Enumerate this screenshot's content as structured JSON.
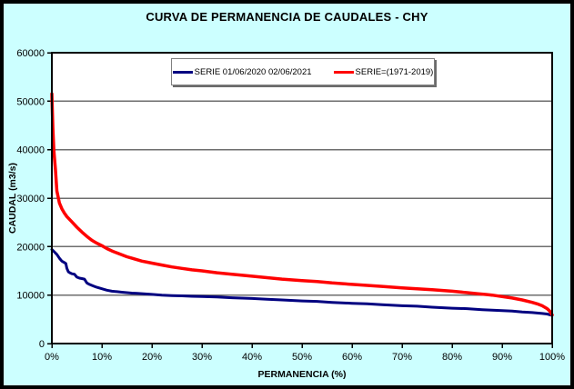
{
  "window": {
    "title": "CURVA DE PERMANENCIA DE CAUDALES - CHY"
  },
  "colors": {
    "window_background": "#CCFFFF",
    "window_border": "#000000",
    "plot_background": "#FFFFFF",
    "plot_frame": "#000000",
    "gridline": "#6E6E6E",
    "tick": "#000000",
    "series_blue": "#000080",
    "series_red": "#FF0000",
    "legend_background": "#FFFFFF",
    "legend_border": "#808080"
  },
  "legend": {
    "items": [
      {
        "label": "SERIE 01/06/2020 02/06/2021",
        "color": "#000080"
      },
      {
        "label": "SERIE=(1971-2019)",
        "color": "#FF0000"
      }
    ]
  },
  "axes": {
    "x_title": "PERMANENCIA (%)",
    "y_title": "CAUDAL (m3/s)"
  },
  "chart_data": {
    "type": "line",
    "title": "CURVA DE PERMANENCIA DE CAUDALES - CHY",
    "xlabel": "PERMANENCIA (%)",
    "ylabel": "CAUDAL (m3/s)",
    "xlim": [
      0,
      100
    ],
    "ylim": [
      0,
      60000
    ],
    "x_ticks": [
      "0%",
      "10%",
      "20%",
      "30%",
      "40%",
      "50%",
      "60%",
      "70%",
      "80%",
      "90%",
      "100%"
    ],
    "y_ticks": [
      0,
      10000,
      20000,
      30000,
      40000,
      50000,
      60000
    ],
    "grid": "horizontal-only",
    "legend_position": "inside-top-center",
    "series": [
      {
        "name": "SERIE 01/06/2020 02/06/2021",
        "color": "#000080",
        "width": 3,
        "points": [
          [
            0,
            19400
          ],
          [
            0.5,
            18900
          ],
          [
            1,
            18400
          ],
          [
            1.5,
            17600
          ],
          [
            2,
            17000
          ],
          [
            2.5,
            16700
          ],
          [
            2.8,
            16500
          ],
          [
            3,
            15500
          ],
          [
            3.3,
            14800
          ],
          [
            3.6,
            14600
          ],
          [
            4,
            14400
          ],
          [
            4.5,
            14300
          ],
          [
            5,
            13700
          ],
          [
            5.5,
            13500
          ],
          [
            6,
            13400
          ],
          [
            6.5,
            13300
          ],
          [
            7,
            12500
          ],
          [
            7.5,
            12200
          ],
          [
            8,
            12000
          ],
          [
            8.5,
            11800
          ],
          [
            9,
            11600
          ],
          [
            10,
            11300
          ],
          [
            11,
            11000
          ],
          [
            12,
            10800
          ],
          [
            13,
            10700
          ],
          [
            14,
            10600
          ],
          [
            15,
            10500
          ],
          [
            16,
            10400
          ],
          [
            17,
            10350
          ],
          [
            18,
            10300
          ],
          [
            20,
            10150
          ],
          [
            22,
            10000
          ],
          [
            24,
            9900
          ],
          [
            26,
            9850
          ],
          [
            28,
            9750
          ],
          [
            30,
            9700
          ],
          [
            33,
            9600
          ],
          [
            36,
            9450
          ],
          [
            40,
            9300
          ],
          [
            43,
            9150
          ],
          [
            46,
            9000
          ],
          [
            50,
            8800
          ],
          [
            53,
            8700
          ],
          [
            56,
            8500
          ],
          [
            60,
            8300
          ],
          [
            63,
            8200
          ],
          [
            66,
            8000
          ],
          [
            70,
            7800
          ],
          [
            73,
            7700
          ],
          [
            76,
            7500
          ],
          [
            80,
            7300
          ],
          [
            83,
            7200
          ],
          [
            86,
            7000
          ],
          [
            90,
            6800
          ],
          [
            92,
            6700
          ],
          [
            94,
            6500
          ],
          [
            96,
            6400
          ],
          [
            98,
            6200
          ],
          [
            99,
            6100
          ],
          [
            100,
            5800
          ]
        ]
      },
      {
        "name": "SERIE=(1971-2019)",
        "color": "#FF0000",
        "width": 3.5,
        "points": [
          [
            0,
            51500
          ],
          [
            0.2,
            44500
          ],
          [
            0.4,
            39800
          ],
          [
            0.7,
            36000
          ],
          [
            1,
            31500
          ],
          [
            1.5,
            29000
          ],
          [
            2,
            27800
          ],
          [
            2.5,
            26900
          ],
          [
            3,
            26200
          ],
          [
            4,
            25100
          ],
          [
            5,
            24000
          ],
          [
            6,
            23000
          ],
          [
            7,
            22100
          ],
          [
            8,
            21300
          ],
          [
            9,
            20700
          ],
          [
            10,
            20200
          ],
          [
            11,
            19600
          ],
          [
            12,
            19100
          ],
          [
            13,
            18700
          ],
          [
            14,
            18300
          ],
          [
            15,
            17900
          ],
          [
            16,
            17600
          ],
          [
            17,
            17300
          ],
          [
            18,
            17000
          ],
          [
            19,
            16800
          ],
          [
            20,
            16600
          ],
          [
            22,
            16200
          ],
          [
            24,
            15800
          ],
          [
            26,
            15500
          ],
          [
            28,
            15200
          ],
          [
            30,
            15000
          ],
          [
            33,
            14600
          ],
          [
            36,
            14300
          ],
          [
            40,
            13900
          ],
          [
            43,
            13600
          ],
          [
            46,
            13300
          ],
          [
            50,
            13000
          ],
          [
            53,
            12800
          ],
          [
            56,
            12500
          ],
          [
            60,
            12200
          ],
          [
            63,
            12000
          ],
          [
            66,
            11800
          ],
          [
            70,
            11500
          ],
          [
            73,
            11300
          ],
          [
            76,
            11100
          ],
          [
            80,
            10800
          ],
          [
            83,
            10500
          ],
          [
            85,
            10300
          ],
          [
            87,
            10100
          ],
          [
            88,
            10000
          ],
          [
            90,
            9700
          ],
          [
            92,
            9400
          ],
          [
            94,
            9000
          ],
          [
            96,
            8500
          ],
          [
            97,
            8200
          ],
          [
            98,
            7800
          ],
          [
            99,
            7200
          ],
          [
            99.5,
            6700
          ],
          [
            100,
            5900
          ]
        ]
      }
    ]
  }
}
